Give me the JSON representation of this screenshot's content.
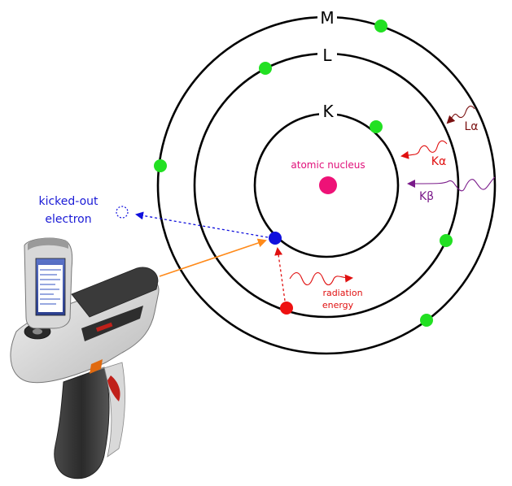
{
  "shells": {
    "k": "K",
    "l": "L",
    "m": "M"
  },
  "nucleus_label": "atomic nucleus",
  "kicked_out_label": {
    "line1": "kicked-out",
    "line2": "electron"
  },
  "radiation_label": {
    "line1": "radiation",
    "line2": "energy"
  },
  "emission_lines": {
    "l_alpha": "Lα",
    "k_alpha": "Kα",
    "k_beta": "Kβ"
  },
  "colors": {
    "nucleus": "#ee1277",
    "electron_green": "#22e022",
    "electron_blue": "#1010dd",
    "electron_red": "#ee1111",
    "l_alpha": "#7a1010",
    "k_alpha": "#e01010",
    "k_beta": "#7a1a8a",
    "beam": "#ff8a1a"
  }
}
